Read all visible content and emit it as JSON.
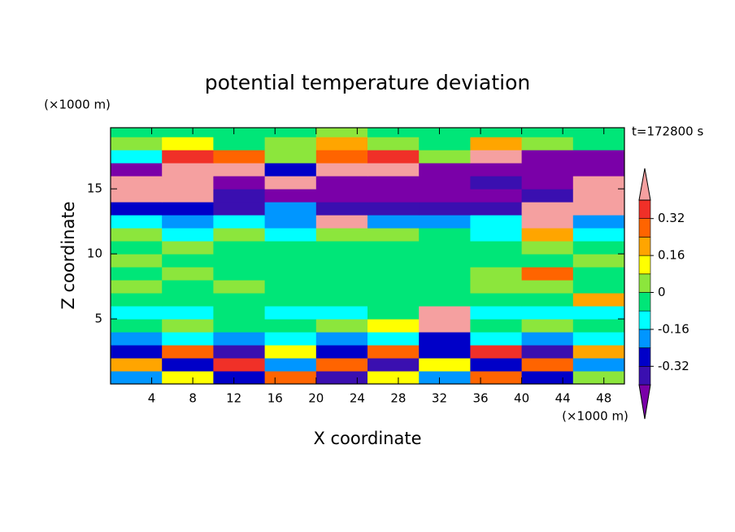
{
  "chart_data": {
    "type": "contour",
    "title": "potential temperature deviation",
    "xlabel": "X coordinate",
    "ylabel": "Z coordinate",
    "xunit": "(×1000 m)",
    "yunit": "(×1000 m)",
    "time_label": "t=172800 s",
    "xlim": [
      0,
      50
    ],
    "ylim": [
      0,
      19.7
    ],
    "xticks": [
      4,
      8,
      12,
      16,
      20,
      24,
      28,
      32,
      36,
      40,
      44,
      48
    ],
    "yticks": [
      5,
      10,
      15
    ],
    "x_edges": [
      0,
      5,
      10,
      15,
      20,
      25,
      30,
      35,
      40,
      45,
      50
    ],
    "y_edges": [
      0,
      1,
      2,
      3,
      4,
      5,
      6,
      7,
      8,
      9,
      10,
      11,
      12,
      13,
      14,
      15,
      16,
      17,
      18,
      19,
      20
    ],
    "z": [
      [
        -0.2,
        0.1,
        -0.3,
        0.3,
        -0.35,
        0.1,
        -0.2,
        0.3,
        -0.3,
        0.05
      ],
      [
        0.2,
        -0.3,
        0.35,
        -0.2,
        0.25,
        -0.35,
        0.15,
        -0.3,
        0.3,
        -0.2
      ],
      [
        -0.3,
        0.3,
        -0.35,
        0.1,
        -0.3,
        0.3,
        -0.25,
        0.35,
        -0.35,
        0.2
      ],
      [
        -0.2,
        -0.12,
        -0.2,
        -0.12,
        -0.2,
        -0.12,
        -0.28,
        -0.12,
        -0.2,
        -0.12
      ],
      [
        -0.04,
        0.04,
        -0.04,
        -0.04,
        0.04,
        0.12,
        0.5,
        -0.04,
        0.04,
        -0.04
      ],
      [
        -0.12,
        -0.12,
        -0.04,
        -0.12,
        -0.12,
        -0.04,
        0.5,
        -0.12,
        -0.12,
        -0.12
      ],
      [
        -0.04,
        -0.04,
        -0.04,
        -0.04,
        -0.04,
        -0.04,
        -0.04,
        -0.04,
        -0.04,
        0.2
      ],
      [
        0.04,
        -0.04,
        0.04,
        -0.04,
        -0.04,
        -0.04,
        -0.04,
        0.04,
        0.04,
        -0.04
      ],
      [
        -0.04,
        0.04,
        -0.04,
        -0.04,
        -0.04,
        -0.04,
        -0.04,
        0.04,
        0.3,
        -0.04
      ],
      [
        0.04,
        -0.04,
        -0.04,
        -0.04,
        -0.04,
        -0.04,
        -0.04,
        -0.04,
        -0.04,
        0.04
      ],
      [
        -0.04,
        0.04,
        -0.04,
        -0.04,
        -0.04,
        -0.04,
        -0.04,
        -0.04,
        0.04,
        -0.04
      ],
      [
        0.04,
        -0.12,
        0.04,
        -0.12,
        0.04,
        0.04,
        -0.04,
        -0.12,
        0.2,
        -0.12
      ],
      [
        -0.12,
        -0.2,
        -0.12,
        -0.2,
        0.5,
        -0.2,
        -0.2,
        -0.12,
        0.5,
        -0.2
      ],
      [
        -0.28,
        -0.28,
        -0.36,
        -0.2,
        -0.36,
        -0.36,
        -0.36,
        -0.36,
        0.5,
        0.5
      ],
      [
        0.5,
        0.5,
        -0.36,
        -0.45,
        -0.45,
        -0.45,
        -0.45,
        -0.45,
        -0.36,
        0.5
      ],
      [
        0.5,
        0.5,
        -0.45,
        0.5,
        -0.45,
        -0.45,
        -0.45,
        -0.36,
        -0.45,
        0.5
      ],
      [
        -0.45,
        0.5,
        0.5,
        -0.28,
        0.5,
        0.5,
        -0.45,
        -0.45,
        -0.45,
        -0.45
      ],
      [
        -0.12,
        0.36,
        0.28,
        0.04,
        0.28,
        0.36,
        0.04,
        0.5,
        -0.45,
        -0.45
      ],
      [
        0.04,
        0.12,
        -0.04,
        0.04,
        0.2,
        0.04,
        -0.04,
        0.2,
        0.04,
        -0.04
      ],
      [
        -0.04,
        -0.04,
        -0.04,
        -0.04,
        0.04,
        -0.04,
        -0.04,
        -0.04,
        -0.04,
        -0.04
      ]
    ],
    "colorbar": {
      "levels": [
        -0.4,
        -0.32,
        -0.24,
        -0.16,
        -0.08,
        0,
        0.08,
        0.16,
        0.24,
        0.32,
        0.4
      ],
      "colors": [
        "#7a00a8",
        "#3a0fb0",
        "#0000c8",
        "#0096ff",
        "#00ffff",
        "#00e678",
        "#8ce63c",
        "#ffff00",
        "#ffa500",
        "#ff6400",
        "#f03028",
        "#f5a0a0"
      ],
      "ticks": [
        -0.32,
        -0.16,
        0,
        0.16,
        0.32
      ]
    }
  }
}
